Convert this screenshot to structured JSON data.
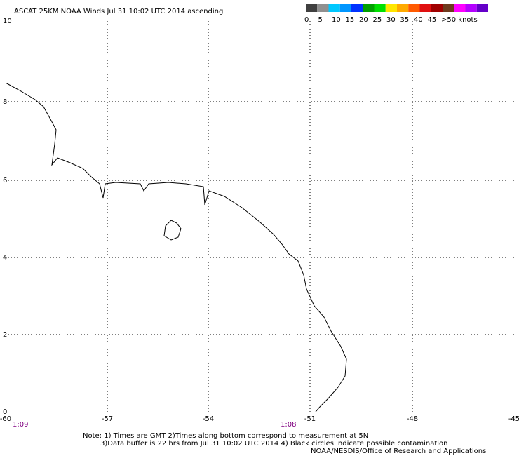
{
  "title": "ASCAT 25KM NOAA Winds Jul 31 10:02 UTC 2014 ascending",
  "legend": {
    "labels": [
      "0",
      "5",
      "10",
      "15",
      "20",
      "25",
      "30",
      "35",
      "40",
      "45",
      ">50 knots"
    ],
    "colors": [
      "#404040",
      "#909090",
      "#00c8ff",
      "#0096ff",
      "#0032ff",
      "#00a000",
      "#00e000",
      "#ffe600",
      "#ffaa00",
      "#ff5a00",
      "#e01010",
      "#a00000",
      "#6e3a1e",
      "#ff00ff",
      "#b400ff",
      "#6400c8"
    ]
  },
  "axes": {
    "lon_labels": [
      "-60",
      "-57",
      "-54",
      "-51",
      "-48",
      "-45"
    ],
    "lat_labels": [
      "10",
      "8",
      "6",
      "4",
      "2",
      "0"
    ]
  },
  "times": [
    "1:09",
    "1:08"
  ],
  "notes": [
    "Note: 1) Times are GMT 2)Times along bottom correspond to measurement at 5N",
    "3)Data buffer is 22 hrs from Jul 31 10:02 UTC 2014 4) Black circles indicate possible contamination",
    "NOAA/NESDIS/Office of Research and Applications"
  ]
}
